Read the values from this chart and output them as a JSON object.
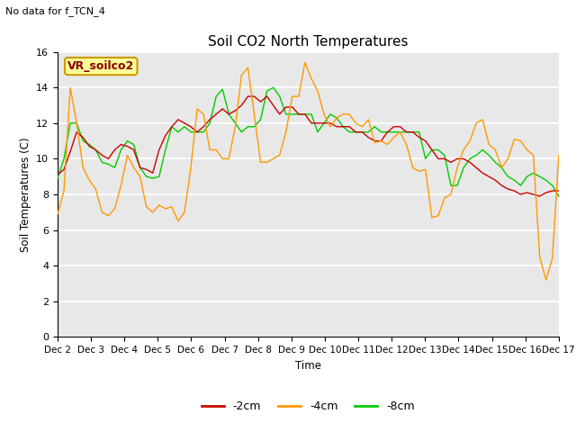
{
  "title": "Soil CO2 North Temperatures",
  "ylabel": "Soil Temperatures (C)",
  "xlabel": "Time",
  "no_data_text": "No data for f_TCN_4",
  "legend_box_text": "VR_soilco2",
  "ylim": [
    0,
    16
  ],
  "yticks": [
    0,
    2,
    4,
    6,
    8,
    10,
    12,
    14,
    16
  ],
  "x_labels": [
    "Dec 2",
    "Dec 3",
    "Dec 4",
    "Dec 5",
    "Dec 6",
    "Dec 7",
    "Dec 8",
    "Dec 9",
    "Dec 10",
    "Dec 11",
    "Dec 12",
    "Dec 13",
    "Dec 14",
    "Dec 15",
    "Dec 16",
    "Dec 17"
  ],
  "bg_color": "#e8e8e8",
  "line_colors": [
    "#cc0000",
    "#ff9900",
    "#00cc00"
  ],
  "line_labels": [
    "-2cm",
    "-4cm",
    "-8cm"
  ],
  "t_2cm": [
    9.1,
    9.4,
    10.4,
    11.5,
    11.2,
    10.7,
    10.5,
    10.2,
    10.0,
    10.5,
    10.8,
    10.7,
    10.5,
    9.5,
    9.4,
    9.2,
    10.5,
    11.3,
    11.8,
    12.2,
    12.0,
    11.8,
    11.5,
    11.8,
    12.2,
    12.5,
    12.8,
    12.5,
    12.7,
    13.0,
    13.5,
    13.5,
    13.2,
    13.5,
    13.0,
    12.5,
    12.9,
    12.9,
    12.5,
    12.5,
    12.0,
    12.0,
    12.0,
    12.0,
    11.8,
    11.8,
    11.8,
    11.5,
    11.5,
    11.2,
    11.0,
    11.0,
    11.5,
    11.8,
    11.8,
    11.5,
    11.5,
    11.2,
    11.0,
    10.5,
    10.0,
    10.0,
    9.8,
    10.0,
    10.0,
    9.8,
    9.5,
    9.2,
    9.0,
    8.8,
    8.5,
    8.3,
    8.2,
    8.0,
    8.1,
    8.0,
    7.9,
    8.1,
    8.2,
    8.2
  ],
  "t_4cm": [
    6.9,
    8.2,
    14.0,
    12.0,
    9.5,
    8.8,
    8.3,
    7.0,
    6.8,
    7.2,
    8.5,
    10.2,
    9.5,
    9.0,
    7.3,
    7.0,
    7.4,
    7.2,
    7.3,
    6.5,
    7.0,
    9.5,
    12.8,
    12.5,
    10.5,
    10.5,
    10.0,
    10.0,
    11.8,
    14.7,
    15.1,
    12.5,
    9.8,
    9.8,
    10.0,
    10.2,
    11.5,
    13.5,
    13.5,
    15.4,
    14.5,
    13.8,
    12.5,
    11.8,
    12.3,
    12.5,
    12.5,
    12.0,
    11.8,
    12.2,
    10.9,
    11.0,
    10.8,
    11.2,
    11.5,
    10.8,
    9.5,
    9.3,
    9.4,
    6.7,
    6.8,
    7.8,
    8.0,
    9.5,
    10.5,
    11.0,
    12.0,
    12.2,
    10.8,
    10.5,
    9.5,
    10.0,
    11.1,
    11.0,
    10.5,
    10.2,
    4.5,
    3.2,
    4.4,
    10.2
  ],
  "t_8cm": [
    8.9,
    10.0,
    12.0,
    12.0,
    11.0,
    10.8,
    10.5,
    9.8,
    9.7,
    9.5,
    10.5,
    11.0,
    10.8,
    9.5,
    9.0,
    8.9,
    9.0,
    10.5,
    11.8,
    11.5,
    11.8,
    11.5,
    11.5,
    11.5,
    12.0,
    13.5,
    13.9,
    12.5,
    12.0,
    11.5,
    11.8,
    11.8,
    12.2,
    13.8,
    14.0,
    13.5,
    12.5,
    12.5,
    12.5,
    12.5,
    12.5,
    11.5,
    12.0,
    12.5,
    12.3,
    11.8,
    11.5,
    11.5,
    11.5,
    11.5,
    11.8,
    11.5,
    11.5,
    11.5,
    11.5,
    11.5,
    11.5,
    11.5,
    10.0,
    10.5,
    10.5,
    10.2,
    8.5,
    8.5,
    9.5,
    10.0,
    10.2,
    10.5,
    10.2,
    9.8,
    9.5,
    9.0,
    8.8,
    8.5,
    9.0,
    9.2,
    9.0,
    8.8,
    8.5,
    7.9
  ]
}
